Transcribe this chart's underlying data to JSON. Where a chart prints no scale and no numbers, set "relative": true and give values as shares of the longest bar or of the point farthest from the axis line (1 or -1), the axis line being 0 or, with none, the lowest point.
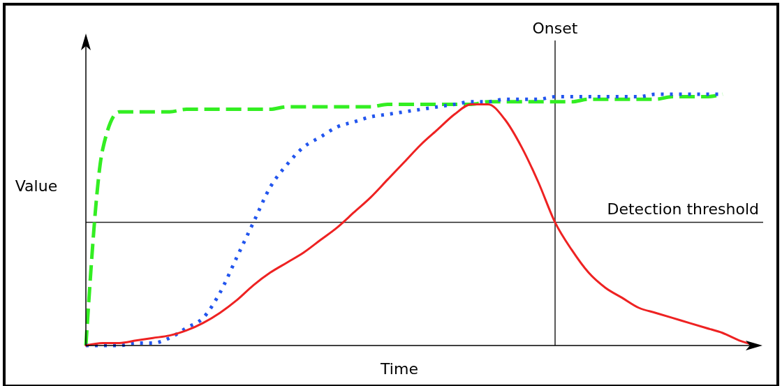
{
  "chart_data": {
    "type": "line",
    "relative": true,
    "xlabel": "Time",
    "ylabel": "Value",
    "marker": "none",
    "annotations": [
      "Onset"
    ],
    "categories": [
      null,
      null,
      null,
      null,
      null,
      null,
      null,
      null,
      null,
      null,
      null,
      null,
      null,
      null,
      null,
      null,
      null,
      null,
      null,
      null,
      null,
      null,
      null,
      null,
      null,
      null,
      null,
      null,
      null,
      null,
      null,
      null,
      null,
      null,
      null,
      null,
      null,
      null,
      null,
      null,
      null
    ],
    "series": [
      {
        "color": "#33ee22",
        "line_style": "dashed",
        "values": [
          0,
          0.78,
          0.93,
          0.93,
          0.93,
          0.93,
          0.94,
          0.94,
          0.94,
          0.94,
          0.94,
          0.94,
          0.95,
          0.95,
          0.95,
          0.95,
          0.95,
          0.95,
          0.96,
          0.96,
          0.96,
          0.96,
          0.96,
          0.96,
          0.97,
          0.97,
          0.97,
          0.97,
          0.97,
          0.97,
          0.98,
          0.98,
          0.98,
          0.98,
          0.98,
          0.99,
          0.99,
          0.99,
          1.0,
          null,
          null
        ]
      },
      {
        "color": "#2255ee",
        "line_style": "dotted",
        "values": [
          0,
          0,
          0,
          0.01,
          0.01,
          0.03,
          0.07,
          0.11,
          0.21,
          0.35,
          0.49,
          0.63,
          0.72,
          0.79,
          0.83,
          0.87,
          0.89,
          0.91,
          0.92,
          0.93,
          0.94,
          0.95,
          0.96,
          0.97,
          0.97,
          0.98,
          0.98,
          0.98,
          0.99,
          0.99,
          0.99,
          0.99,
          0.99,
          0.99,
          1.0,
          1.0,
          1.0,
          1.0,
          1.0,
          null,
          null
        ]
      },
      {
        "color": "#ee2222",
        "line_style": "solid",
        "values": [
          0,
          0.01,
          0.01,
          0.02,
          0.03,
          0.04,
          0.06,
          0.09,
          0.13,
          0.18,
          0.24,
          0.29,
          0.33,
          0.37,
          0.42,
          0.47,
          0.53,
          0.59,
          0.66,
          0.73,
          0.8,
          0.86,
          0.92,
          0.96,
          0.96,
          0.9,
          0.79,
          0.65,
          0.49,
          0.38,
          0.29,
          0.23,
          0.19,
          0.15,
          0.13,
          0.11,
          0.09,
          0.07,
          0.05,
          0.02,
          0
        ]
      }
    ],
    "ref_lines": [
      {
        "axis": "y",
        "value": 0.49,
        "label": "Detection threshold"
      }
    ]
  }
}
